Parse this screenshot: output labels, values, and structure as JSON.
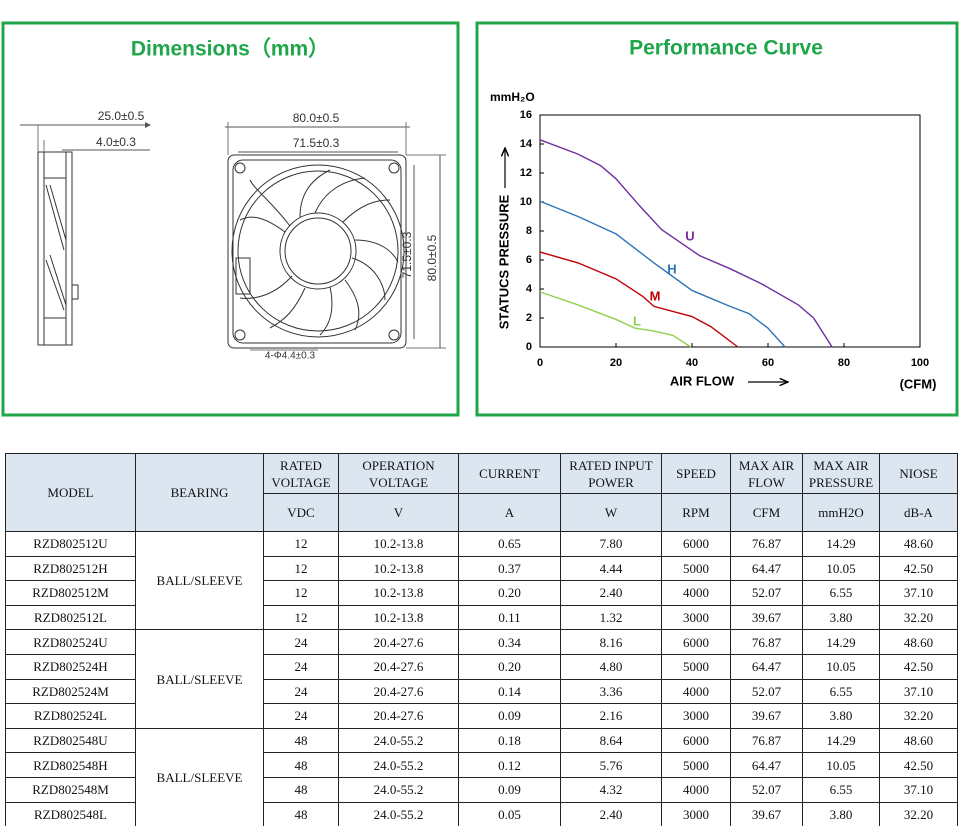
{
  "dimensions": {
    "title": "Dimensions（mm）",
    "labels": [
      "25.0±0.5",
      "4.0±0.3",
      "80.0±0.5",
      "71.5±0.3",
      "71.5±0.3",
      "80.0±0.5",
      "4-Φ4.4±0.3"
    ]
  },
  "chart_data": {
    "type": "line",
    "title": "Performance Curve",
    "y_unit": "mmH₂O",
    "ylabel": "STATUCS  PRESSURE",
    "xlabel": "AIR FLOW",
    "x_unit": "(CFM)",
    "xlim": [
      0,
      100
    ],
    "xticks": [
      0,
      20,
      40,
      60,
      80,
      100
    ],
    "ylim": [
      0,
      16
    ],
    "yticks": [
      0,
      2,
      4,
      6,
      8,
      10,
      12,
      14,
      16
    ],
    "grid": false,
    "series": [
      {
        "name": "U",
        "color": "#7030a0",
        "x": [
          0,
          10,
          16,
          20,
          26,
          32,
          42,
          50,
          58,
          68,
          72,
          76.87
        ],
        "values": [
          14.29,
          13.3,
          12.5,
          11.6,
          9.8,
          8.1,
          6.3,
          5.4,
          4.4,
          2.9,
          2.0,
          0
        ]
      },
      {
        "name": "H",
        "color": "#2e75b6",
        "x": [
          0,
          10,
          20,
          26,
          30,
          40,
          50,
          55,
          60,
          64.47
        ],
        "values": [
          10.05,
          9.0,
          7.8,
          6.6,
          5.8,
          3.9,
          2.8,
          2.3,
          1.3,
          0
        ]
      },
      {
        "name": "M",
        "color": "#c00000",
        "x": [
          0,
          10,
          20,
          27,
          30,
          40,
          45,
          52.07
        ],
        "values": [
          6.55,
          5.8,
          4.7,
          3.5,
          2.8,
          2.1,
          1.4,
          0
        ]
      },
      {
        "name": "L",
        "color": "#92d050",
        "x": [
          0,
          10,
          20,
          25,
          30,
          35,
          39.67
        ],
        "values": [
          3.8,
          2.9,
          1.9,
          1.3,
          1.1,
          0.8,
          0
        ]
      }
    ]
  },
  "table": {
    "header": [
      [
        "MODEL"
      ],
      [
        "BEARING"
      ],
      [
        "RATED",
        "VOLTAGE"
      ],
      [
        "OPERATION",
        "VOLTAGE"
      ],
      [
        "CURRENT"
      ],
      [
        "RATED INPUT",
        "POWER"
      ],
      [
        "SPEED"
      ],
      [
        "MAX AIR",
        "FLOW"
      ],
      [
        "MAX AIR",
        "PRESSURE"
      ],
      [
        "NIOSE"
      ]
    ],
    "units": [
      "VDC",
      "V",
      "A",
      "W",
      "RPM",
      "CFM",
      "mmH2O",
      "dB-A"
    ],
    "groups": [
      {
        "bearing": "BALL/SLEEVE",
        "rows": [
          [
            "RZD802512U",
            "12",
            "10.2-13.8",
            "0.65",
            "7.80",
            "6000",
            "76.87",
            "14.29",
            "48.60"
          ],
          [
            "RZD802512H",
            "12",
            "10.2-13.8",
            "0.37",
            "4.44",
            "5000",
            "64.47",
            "10.05",
            "42.50"
          ],
          [
            "RZD802512M",
            "12",
            "10.2-13.8",
            "0.20",
            "2.40",
            "4000",
            "52.07",
            "6.55",
            "37.10"
          ],
          [
            "RZD802512L",
            "12",
            "10.2-13.8",
            "0.11",
            "1.32",
            "3000",
            "39.67",
            "3.80",
            "32.20"
          ]
        ]
      },
      {
        "bearing": "BALL/SLEEVE",
        "rows": [
          [
            "RZD802524U",
            "24",
            "20.4-27.6",
            "0.34",
            "8.16",
            "6000",
            "76.87",
            "14.29",
            "48.60"
          ],
          [
            "RZD802524H",
            "24",
            "20.4-27.6",
            "0.20",
            "4.80",
            "5000",
            "64.47",
            "10.05",
            "42.50"
          ],
          [
            "RZD802524M",
            "24",
            "20.4-27.6",
            "0.14",
            "3.36",
            "4000",
            "52.07",
            "6.55",
            "37.10"
          ],
          [
            "RZD802524L",
            "24",
            "20.4-27.6",
            "0.09",
            "2.16",
            "3000",
            "39.67",
            "3.80",
            "32.20"
          ]
        ]
      },
      {
        "bearing": "BALL/SLEEVE",
        "rows": [
          [
            "RZD802548U",
            "48",
            "24.0-55.2",
            "0.18",
            "8.64",
            "6000",
            "76.87",
            "14.29",
            "48.60"
          ],
          [
            "RZD802548H",
            "48",
            "24.0-55.2",
            "0.12",
            "5.76",
            "5000",
            "64.47",
            "10.05",
            "42.50"
          ],
          [
            "RZD802548M",
            "48",
            "24.0-55.2",
            "0.09",
            "4.32",
            "4000",
            "52.07",
            "6.55",
            "37.10"
          ],
          [
            "RZD802548L",
            "48",
            "24.0-55.2",
            "0.05",
            "2.40",
            "3000",
            "39.67",
            "3.80",
            "32.20"
          ]
        ]
      }
    ]
  }
}
